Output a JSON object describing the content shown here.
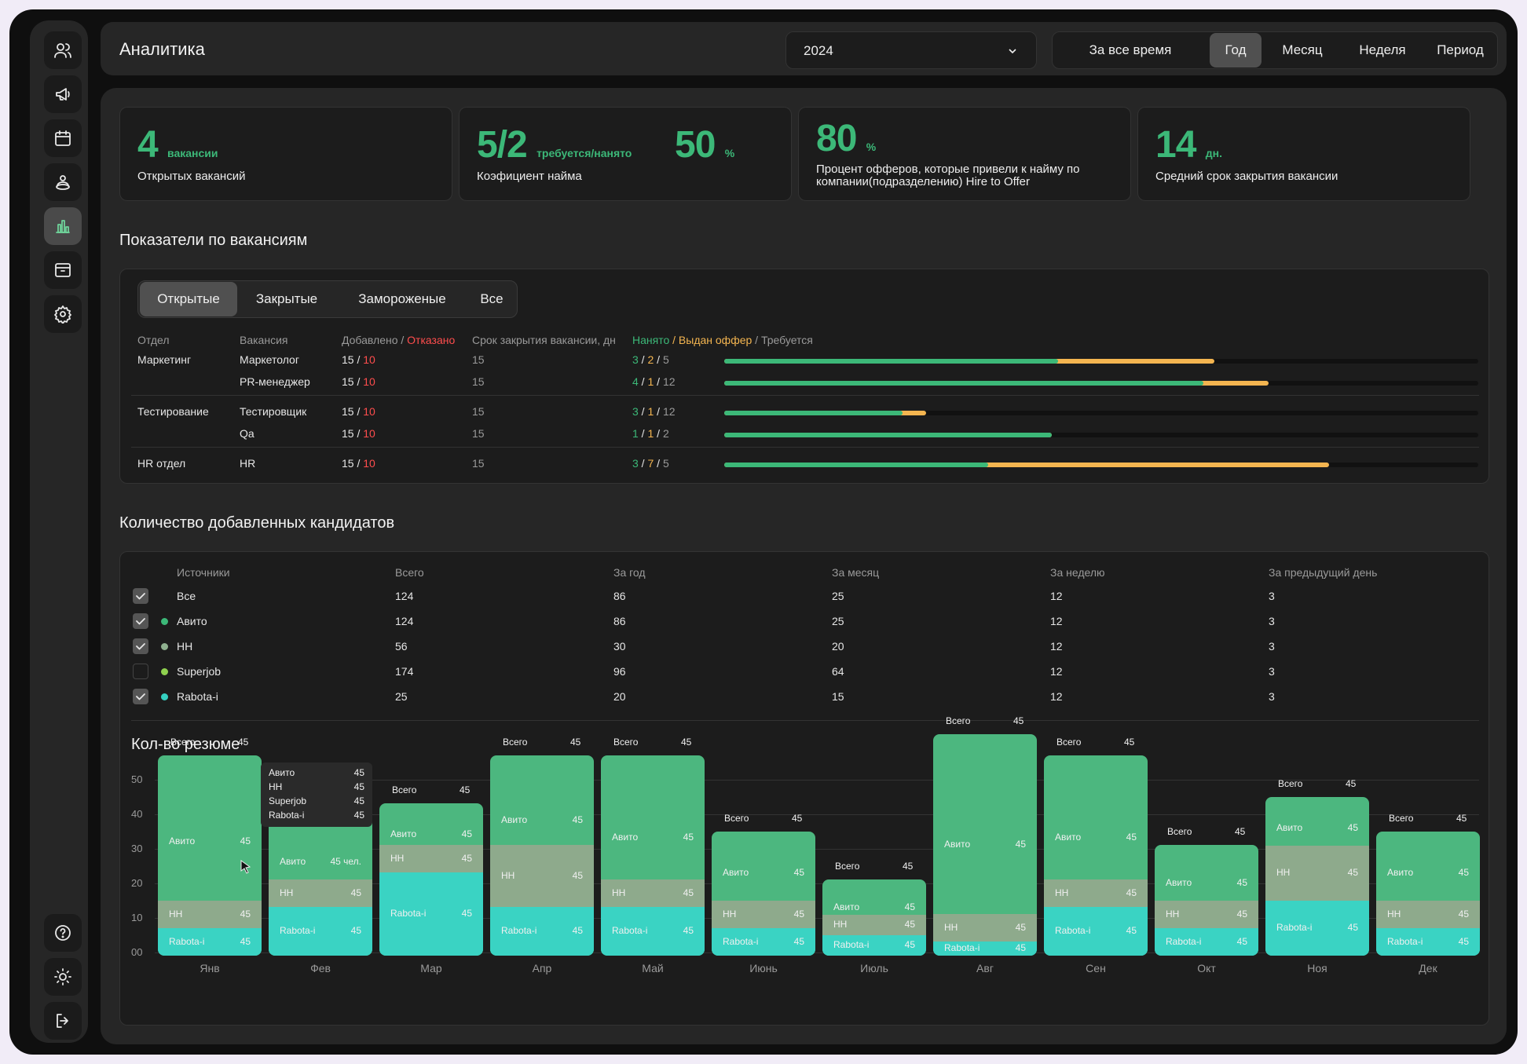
{
  "header": {
    "title": "Аналитика",
    "year": "2024",
    "range_options": [
      "За все время",
      "Год",
      "Месяц",
      "Неделя",
      "Период"
    ],
    "range_active": "Год"
  },
  "kpis": {
    "open": {
      "value": "4",
      "unit": "вакансии",
      "label": "Открытых вакансий"
    },
    "ratio": {
      "value": "5/2",
      "unit": "требуется/нанято",
      "percent": "50",
      "percent_unit": "%",
      "label": "Коэфициент найма"
    },
    "offer": {
      "value": "80",
      "unit": "%",
      "label": "Процент офферов, которые привели к найму по компании(подразделению) Hire to Offer"
    },
    "days": {
      "value": "14",
      "unit": "дн.",
      "label": "Средний срок закрытия вакансии"
    }
  },
  "vacancies": {
    "title": "Показатели по вакансиям",
    "tabs": [
      "Открытые",
      "Закрытые",
      "Замороженые",
      "Все"
    ],
    "active_tab": "Открытые",
    "headers": {
      "dept": "Отдел",
      "vacancy": "Вакансия",
      "added": "Добавлено / ",
      "rejected": "Отказано",
      "term": "Срок закрытия вакансии, дн",
      "hired": "Нанято",
      "offer": " / Выдан оффер",
      "required": " / Требуется"
    },
    "rows": [
      {
        "dept": "Маркетинг",
        "vacancy": "Маркетолог",
        "added": "15",
        "rejected": "10",
        "term": "15",
        "hired": "3",
        "offered": "2",
        "required": "5",
        "hired_frac": 0.443,
        "offer_frac": 0.65
      },
      {
        "dept": "",
        "vacancy": "PR-менеджер",
        "added": "15",
        "rejected": "10",
        "term": "15",
        "hired": "4",
        "offered": "1",
        "required": "12",
        "hired_frac": 0.635,
        "offer_frac": 0.722
      },
      {
        "dept": "Тестирование",
        "vacancy": "Тестировщик",
        "added": "15",
        "rejected": "10",
        "term": "15",
        "hired": "3",
        "offered": "1",
        "required": "12",
        "hired_frac": 0.236,
        "offer_frac": 0.268
      },
      {
        "dept": "",
        "vacancy": "Qa",
        "added": "15",
        "rejected": "10",
        "term": "15",
        "hired": "1",
        "offered": "1",
        "required": "2",
        "hired_frac": 0.434,
        "offer_frac": 0.434
      },
      {
        "dept": "HR отдел",
        "vacancy": "HR",
        "added": "15",
        "rejected": "10",
        "term": "15",
        "hired": "3",
        "offered": "7",
        "required": "5",
        "hired_frac": 0.35,
        "offer_frac": 0.802
      }
    ]
  },
  "candidates": {
    "title": "Количество добавленных кандидатов",
    "headers": [
      "Источники",
      "Всего",
      "За год",
      "За месяц",
      "За неделю",
      "За предыдущий день"
    ],
    "rows": [
      {
        "name": "Все",
        "checked": true,
        "dot": "",
        "vals": [
          "124",
          "86",
          "25",
          "12",
          "3"
        ]
      },
      {
        "name": "Авито",
        "checked": true,
        "dot": "#3cb878",
        "vals": [
          "124",
          "86",
          "25",
          "12",
          "3"
        ]
      },
      {
        "name": "HH",
        "checked": true,
        "dot": "#8fb08f",
        "vals": [
          "56",
          "30",
          "20",
          "12",
          "3"
        ]
      },
      {
        "name": "Superjob",
        "checked": false,
        "dot": "#8fd14f",
        "vals": [
          "174",
          "96",
          "64",
          "12",
          "3"
        ]
      },
      {
        "name": "Rabota-i",
        "checked": true,
        "dot": "#35d0c0",
        "vals": [
          "25",
          "20",
          "15",
          "12",
          "3"
        ]
      }
    ]
  },
  "resume_chart": {
    "title": "Кол-во резюме",
    "y_ticks": [
      "50",
      "40",
      "30",
      "20",
      "10",
      "00"
    ],
    "total_label": "Всего",
    "colors": {
      "avito": "#4cb77f",
      "hh": "#8eaa8c",
      "rabota": "#3ad3c3"
    },
    "tooltip": [
      {
        "name": "Авито",
        "value": "45"
      },
      {
        "name": "HH",
        "value": "45"
      },
      {
        "name": "Superjob",
        "value": "45"
      },
      {
        "name": "Rabota-i",
        "value": "45"
      }
    ],
    "unit_suffix": "чел.",
    "months": [
      {
        "month": "Янв",
        "total": "45",
        "total_height": 29,
        "segments": [
          {
            "name": "Авито",
            "value": "45",
            "height": 17
          },
          {
            "name": "HH",
            "value": "45",
            "height": 4
          },
          {
            "name": "Rabota-i",
            "value": "45",
            "height": 4
          }
        ]
      },
      {
        "month": "Фев",
        "total": "",
        "total_height": 24,
        "segments": [
          {
            "name": "Авито",
            "value": "45 чел.",
            "height": 5
          },
          {
            "name": "HH",
            "value": "45",
            "height": 4
          },
          {
            "name": "Rabota-i",
            "value": "45",
            "height": 7
          }
        ]
      },
      {
        "month": "Мар",
        "total": "45",
        "total_height": 22,
        "segments": [
          {
            "name": "Авито",
            "value": "45",
            "height": 3
          },
          {
            "name": "HH",
            "value": "45",
            "height": 4
          },
          {
            "name": "Rabota-i",
            "value": "45",
            "height": 12
          }
        ]
      },
      {
        "month": "Апр",
        "total": "45",
        "total_height": 29,
        "segments": [
          {
            "name": "Авито",
            "value": "45",
            "height": 7
          },
          {
            "name": "HH",
            "value": "45",
            "height": 9
          },
          {
            "name": "Rabota-i",
            "value": "45",
            "height": 7
          }
        ]
      },
      {
        "month": "Май",
        "total": "45",
        "total_height": 29,
        "segments": [
          {
            "name": "Авито",
            "value": "45",
            "height": 12
          },
          {
            "name": "HH",
            "value": "45",
            "height": 4
          },
          {
            "name": "Rabota-i",
            "value": "45",
            "height": 7
          }
        ]
      },
      {
        "month": "Июнь",
        "total": "45",
        "total_height": 18,
        "segments": [
          {
            "name": "Авито",
            "value": "45",
            "height": 8
          },
          {
            "name": "HH",
            "value": "45",
            "height": 4
          },
          {
            "name": "Rabota-i",
            "value": "45",
            "height": 4
          }
        ]
      },
      {
        "month": "Июль",
        "total": "45",
        "total_height": 11,
        "segments": [
          {
            "name": "Авито",
            "value": "45",
            "height": 2
          },
          {
            "name": "HH",
            "value": "45",
            "height": 3
          },
          {
            "name": "Rabota-i",
            "value": "45",
            "height": 3
          }
        ]
      },
      {
        "month": "Авг",
        "total": "45",
        "total_height": 32,
        "segments": [
          {
            "name": "Авито",
            "value": "45",
            "height": 20
          },
          {
            "name": "HH",
            "value": "45",
            "height": 4
          },
          {
            "name": "Rabota-i",
            "value": "45",
            "height": 2
          }
        ]
      },
      {
        "month": "Сен",
        "total": "45",
        "total_height": 29,
        "segments": [
          {
            "name": "Авито",
            "value": "45",
            "height": 12
          },
          {
            "name": "HH",
            "value": "45",
            "height": 4
          },
          {
            "name": "Rabota-i",
            "value": "45",
            "height": 7
          }
        ]
      },
      {
        "month": "Окт",
        "total": "45",
        "total_height": 16,
        "segments": [
          {
            "name": "Авито",
            "value": "45",
            "height": 5
          },
          {
            "name": "HH",
            "value": "45",
            "height": 4
          },
          {
            "name": "Rabota-i",
            "value": "45",
            "height": 4
          }
        ]
      },
      {
        "month": "Ноя",
        "total": "45",
        "total_height": 23,
        "segments": [
          {
            "name": "Авито",
            "value": "45",
            "height": 5
          },
          {
            "name": "HH",
            "value": "45",
            "height": 8
          },
          {
            "name": "Rabota-i",
            "value": "45",
            "height": 8
          }
        ]
      },
      {
        "month": "Дек",
        "total": "45",
        "total_height": 18,
        "segments": [
          {
            "name": "Авито",
            "value": "45",
            "height": 8
          },
          {
            "name": "HH",
            "value": "45",
            "height": 4
          },
          {
            "name": "Rabota-i",
            "value": "45",
            "height": 4
          }
        ]
      }
    ]
  },
  "sidebar": {
    "icons": [
      "users-icon",
      "megaphone-icon",
      "calendar-icon",
      "candidates-icon",
      "chart-icon",
      "archive-icon",
      "settings-icon"
    ],
    "active": "chart-icon",
    "bottom_icons": [
      "help-icon",
      "theme-icon",
      "logout-icon"
    ]
  }
}
